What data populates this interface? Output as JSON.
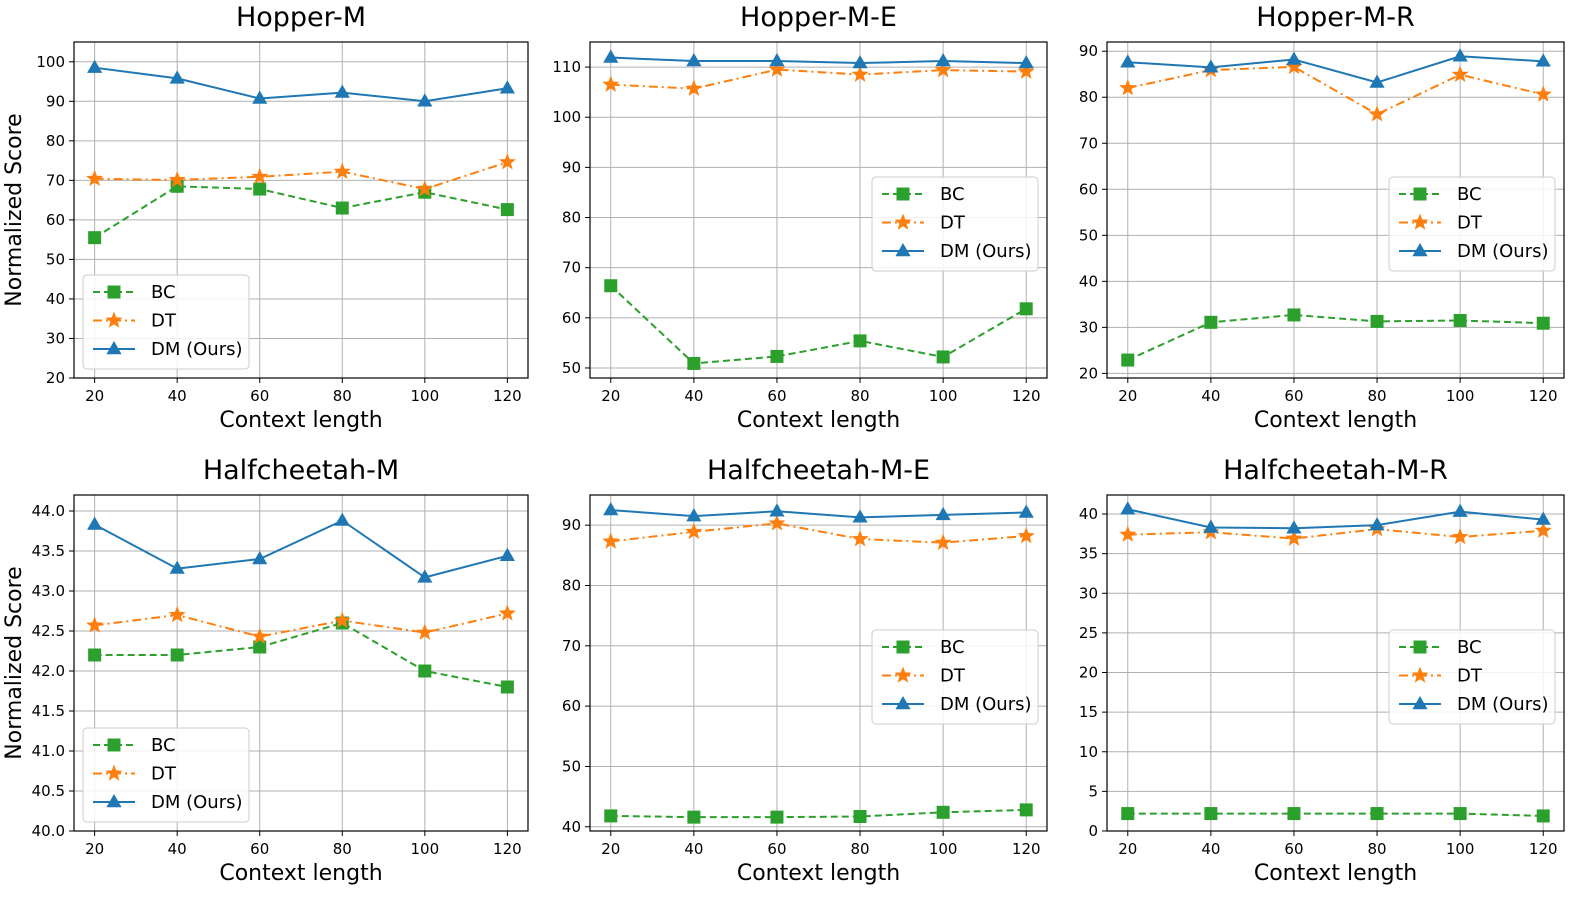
{
  "chart_data": [
    {
      "type": "line",
      "title": "Hopper-M",
      "xlabel": "Context length",
      "ylabel": "Normalized Score",
      "x": [
        20,
        40,
        60,
        80,
        100,
        120
      ],
      "xlim": [
        15,
        125
      ],
      "ylim": [
        20,
        105
      ],
      "yticks": [
        20,
        30,
        40,
        50,
        60,
        70,
        80,
        90,
        100
      ],
      "ytick_labels": [
        "20",
        "30",
        "40",
        "50",
        "60",
        "70",
        "80",
        "90",
        "100"
      ],
      "legend_position": "lower-left",
      "series": [
        {
          "name": "BC",
          "values": [
            55.5,
            68.5,
            67.8,
            63.0,
            67.0,
            62.6
          ]
        },
        {
          "name": "DT",
          "values": [
            70.4,
            70.1,
            70.9,
            72.2,
            67.8,
            74.6
          ]
        },
        {
          "name": "DM (Ours)",
          "values": [
            98.5,
            95.8,
            90.7,
            92.2,
            90.0,
            93.3
          ]
        }
      ]
    },
    {
      "type": "line",
      "title": "Hopper-M-E",
      "xlabel": "Context length",
      "ylabel": "",
      "x": [
        20,
        40,
        60,
        80,
        100,
        120
      ],
      "xlim": [
        15,
        125
      ],
      "ylim": [
        48,
        115
      ],
      "yticks": [
        50,
        60,
        70,
        80,
        90,
        100,
        110
      ],
      "ytick_labels": [
        "50",
        "60",
        "70",
        "80",
        "90",
        "100",
        "110"
      ],
      "legend_position": "center-right",
      "series": [
        {
          "name": "BC",
          "values": [
            66.4,
            50.9,
            52.3,
            55.4,
            52.2,
            61.8
          ]
        },
        {
          "name": "DT",
          "values": [
            106.5,
            105.7,
            109.5,
            108.5,
            109.4,
            109.1
          ]
        },
        {
          "name": "DM (Ours)",
          "values": [
            111.9,
            111.2,
            111.2,
            110.8,
            111.2,
            110.8
          ]
        }
      ]
    },
    {
      "type": "line",
      "title": "Hopper-M-R",
      "xlabel": "Context length",
      "ylabel": "",
      "x": [
        20,
        40,
        60,
        80,
        100,
        120
      ],
      "xlim": [
        15,
        125
      ],
      "ylim": [
        19,
        92
      ],
      "yticks": [
        20,
        30,
        40,
        50,
        60,
        70,
        80,
        90
      ],
      "ytick_labels": [
        "20",
        "30",
        "40",
        "50",
        "60",
        "70",
        "80",
        "90"
      ],
      "legend_position": "center-right",
      "series": [
        {
          "name": "BC",
          "values": [
            22.9,
            31.1,
            32.7,
            31.3,
            31.5,
            30.9
          ]
        },
        {
          "name": "DT",
          "values": [
            82.0,
            85.9,
            86.6,
            76.3,
            84.9,
            80.6
          ]
        },
        {
          "name": "DM (Ours)",
          "values": [
            87.6,
            86.5,
            88.2,
            83.2,
            88.9,
            87.8
          ]
        }
      ]
    },
    {
      "type": "line",
      "title": "Halfcheetah-M",
      "xlabel": "Context length",
      "ylabel": "Normalized Score",
      "x": [
        20,
        40,
        60,
        80,
        100,
        120
      ],
      "xlim": [
        15,
        125
      ],
      "ylim": [
        40.0,
        44.2
      ],
      "yticks": [
        40.0,
        40.5,
        41.0,
        41.5,
        42.0,
        42.5,
        43.0,
        43.5,
        44.0
      ],
      "ytick_labels": [
        "40.0",
        "40.5",
        "41.0",
        "41.5",
        "42.0",
        "42.5",
        "43.0",
        "43.5",
        "44.0"
      ],
      "legend_position": "lower-left",
      "series": [
        {
          "name": "BC",
          "values": [
            42.2,
            42.2,
            42.3,
            42.6,
            42.0,
            41.8
          ]
        },
        {
          "name": "DT",
          "values": [
            42.57,
            42.7,
            42.43,
            42.63,
            42.48,
            42.72
          ]
        },
        {
          "name": "DM (Ours)",
          "values": [
            43.83,
            43.28,
            43.4,
            43.88,
            43.17,
            43.44
          ]
        }
      ]
    },
    {
      "type": "line",
      "title": "Halfcheetah-M-E",
      "xlabel": "Context length",
      "ylabel": "",
      "x": [
        20,
        40,
        60,
        80,
        100,
        120
      ],
      "xlim": [
        15,
        125
      ],
      "ylim": [
        39.3,
        95
      ],
      "yticks": [
        40,
        50,
        60,
        70,
        80,
        90
      ],
      "ytick_labels": [
        "40",
        "50",
        "60",
        "70",
        "80",
        "90"
      ],
      "legend_position": "center-right",
      "series": [
        {
          "name": "BC",
          "values": [
            41.8,
            41.6,
            41.6,
            41.7,
            42.4,
            42.8
          ]
        },
        {
          "name": "DT",
          "values": [
            87.3,
            88.9,
            90.3,
            87.7,
            87.1,
            88.2
          ]
        },
        {
          "name": "DM (Ours)",
          "values": [
            92.5,
            91.5,
            92.3,
            91.3,
            91.7,
            92.1
          ]
        }
      ]
    },
    {
      "type": "line",
      "title": "Halfcheetah-M-R",
      "xlabel": "Context length",
      "ylabel": "",
      "x": [
        20,
        40,
        60,
        80,
        100,
        120
      ],
      "xlim": [
        15,
        125
      ],
      "ylim": [
        0,
        42.4
      ],
      "yticks": [
        0,
        5,
        10,
        15,
        20,
        25,
        30,
        35,
        40
      ],
      "ytick_labels": [
        "0",
        "5",
        "10",
        "15",
        "20",
        "25",
        "30",
        "35",
        "40"
      ],
      "legend_position": "center-right",
      "series": [
        {
          "name": "BC",
          "values": [
            2.2,
            2.2,
            2.2,
            2.2,
            2.2,
            1.9
          ]
        },
        {
          "name": "DT",
          "values": [
            37.4,
            37.7,
            36.9,
            38.1,
            37.1,
            37.9
          ]
        },
        {
          "name": "DM (Ours)",
          "values": [
            40.6,
            38.3,
            38.2,
            38.6,
            40.3,
            39.3
          ]
        }
      ]
    }
  ],
  "series_styles": [
    {
      "name": "BC",
      "color": "#2ca02c",
      "dash": "dashed",
      "marker": "square"
    },
    {
      "name": "DT",
      "color": "#ff7f0e",
      "dash": "dash-dot",
      "marker": "star"
    },
    {
      "name": "DM (Ours)",
      "color": "#1f77b4",
      "dash": "solid",
      "marker": "triangle"
    }
  ]
}
